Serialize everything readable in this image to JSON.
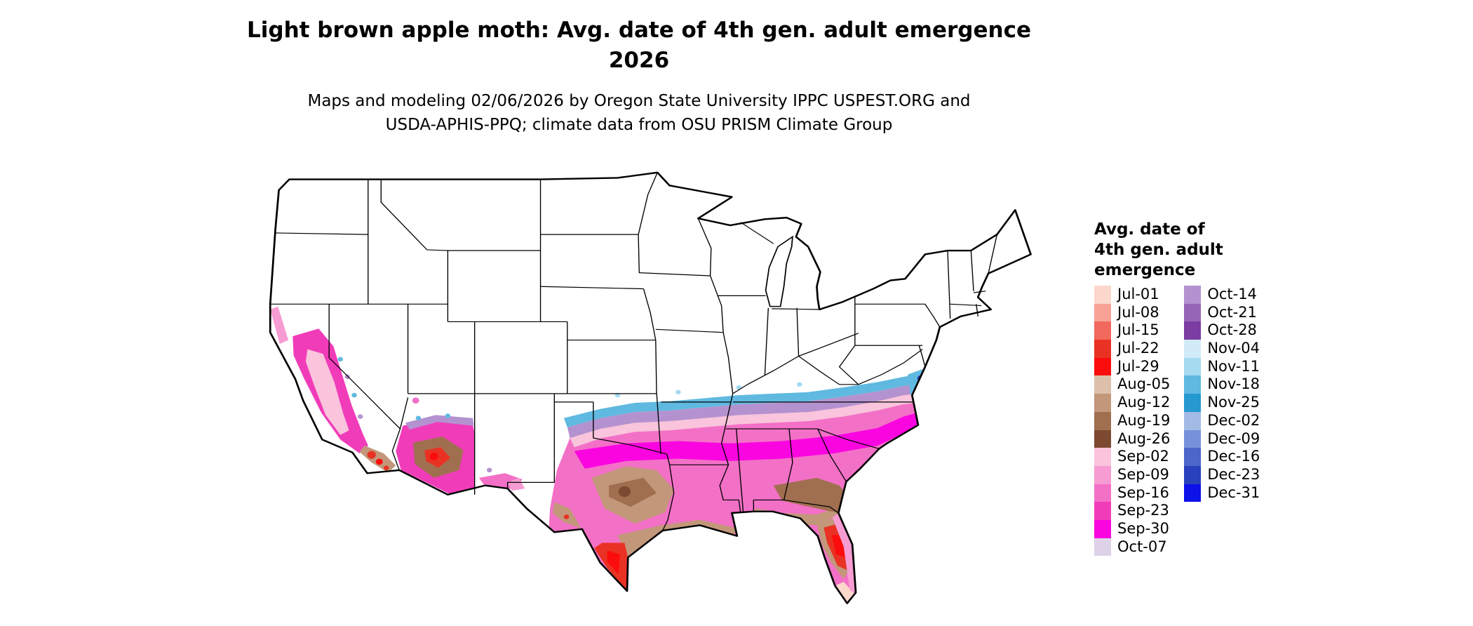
{
  "header": {
    "title_line1": "Light brown apple moth: Avg. date of 4th gen. adult emergence",
    "title_line2": "2026",
    "subtitle_line1": "Maps and modeling 02/06/2026 by Oregon State University IPPC USPEST.ORG and",
    "subtitle_line2": "USDA-APHIS-PPQ; climate data from OSU PRISM Climate Group"
  },
  "legend": {
    "title_lines": [
      "Avg. date of",
      "4th gen. adult",
      "emergence"
    ],
    "columns": [
      {
        "entries": [
          {
            "label": "Jul-01",
            "color": "#fcd7cc"
          },
          {
            "label": "Jul-08",
            "color": "#f7a295"
          },
          {
            "label": "Jul-15",
            "color": "#f1695c"
          },
          {
            "label": "Jul-22",
            "color": "#e93223"
          },
          {
            "label": "Jul-29",
            "color": "#fc0d0d"
          },
          {
            "label": "Aug-05",
            "color": "#dcc0ab"
          },
          {
            "label": "Aug-12",
            "color": "#c2977a"
          },
          {
            "label": "Aug-19",
            "color": "#a06f50"
          },
          {
            "label": "Aug-26",
            "color": "#7d4a31"
          },
          {
            "label": "Sep-02",
            "color": "#f9c4dc"
          },
          {
            "label": "Sep-09",
            "color": "#f69cd2"
          },
          {
            "label": "Sep-16",
            "color": "#f370c7"
          },
          {
            "label": "Sep-23",
            "color": "#f13cba"
          },
          {
            "label": "Sep-30",
            "color": "#fa05e0"
          },
          {
            "label": "Oct-07",
            "color": "#ded2e9"
          }
        ]
      },
      {
        "entries": [
          {
            "label": "Oct-14",
            "color": "#b492cf"
          },
          {
            "label": "Oct-21",
            "color": "#9765b8"
          },
          {
            "label": "Oct-28",
            "color": "#7b3da2"
          },
          {
            "label": "Nov-04",
            "color": "#d2ebf8"
          },
          {
            "label": "Nov-11",
            "color": "#a5daf1"
          },
          {
            "label": "Nov-18",
            "color": "#5fb9e0"
          },
          {
            "label": "Nov-25",
            "color": "#2699d1"
          },
          {
            "label": "Dec-02",
            "color": "#a3bae6"
          },
          {
            "label": "Dec-09",
            "color": "#7792d9"
          },
          {
            "label": "Dec-16",
            "color": "#4c66c9"
          },
          {
            "label": "Dec-23",
            "color": "#2941bd"
          },
          {
            "label": "Dec-31",
            "color": "#0d12e8"
          }
        ]
      }
    ]
  }
}
